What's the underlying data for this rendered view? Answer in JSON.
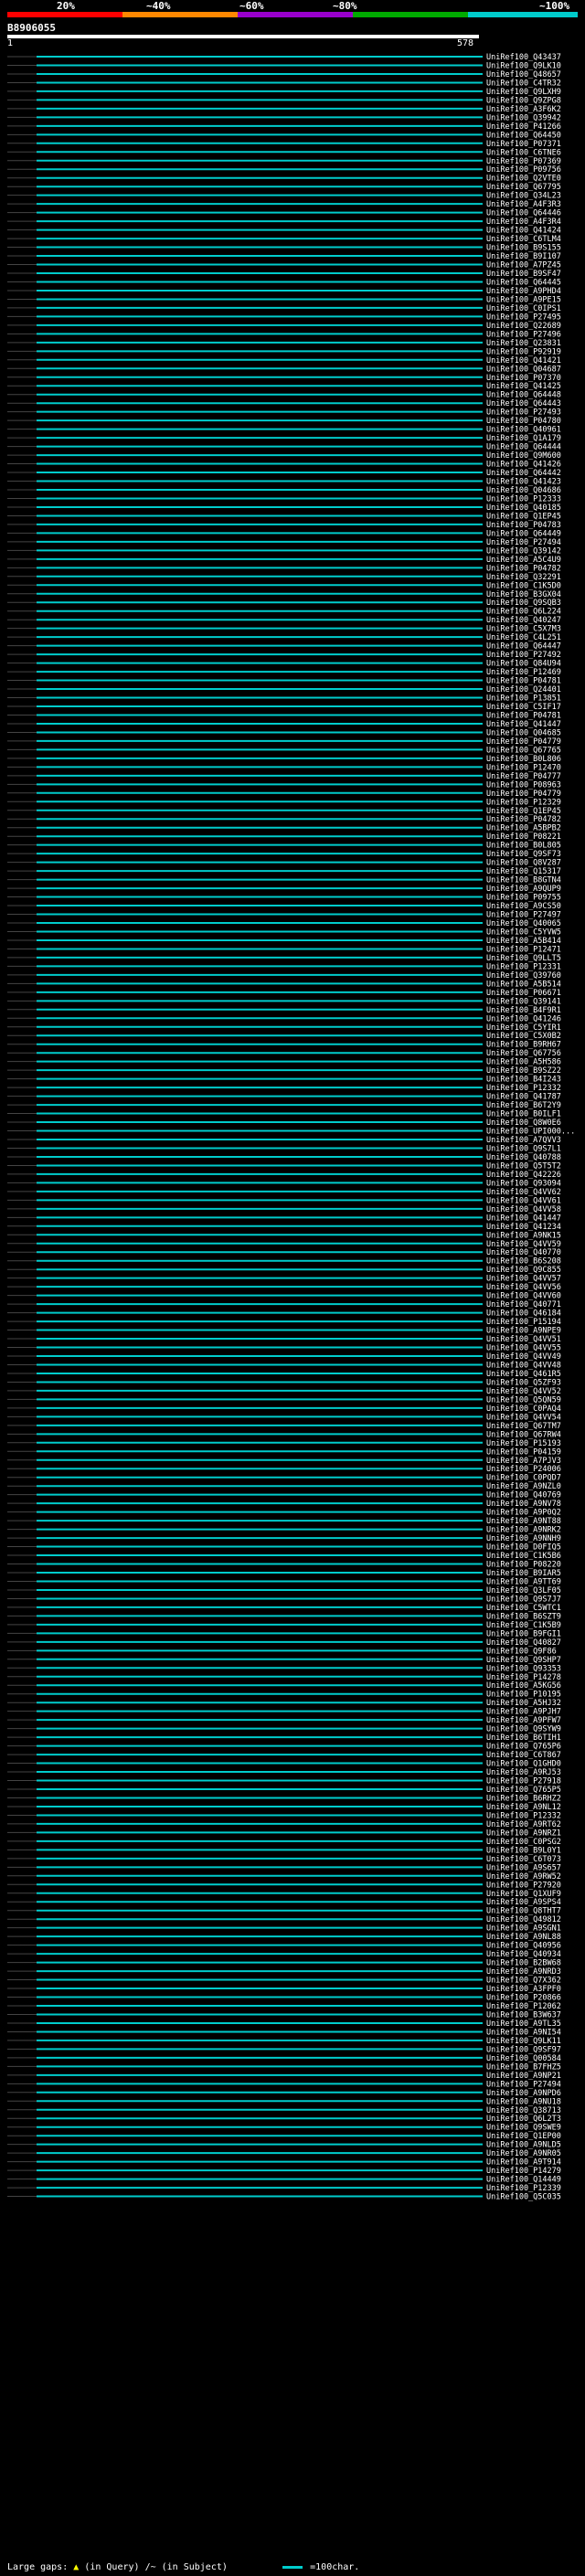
{
  "header": {
    "scale_labels": [
      "20%",
      "~40%",
      "~60%",
      "~80%",
      "~100%"
    ],
    "scale_colors": [
      "#ff0000",
      "#ff8800",
      "#9900cc",
      "#00aa00",
      "#00cccc"
    ],
    "query_id": "B8906055",
    "start_tick": "1",
    "end_tick": "578"
  },
  "footer": {
    "gap_label": "Large gaps:",
    "gap_query": "(in Query)",
    "gap_subject": "/~ (in Subject)",
    "scale_note": "=100char."
  },
  "chart_data": {
    "type": "alignment-overview",
    "query_length": 578,
    "subjects": [
      "UniRef100_Q43437",
      "UniRef100_Q9LK10",
      "UniRef100_Q48657",
      "UniRef100_C4TR32",
      "UniRef100_Q9LXH9",
      "UniRef100_Q9ZPG8",
      "UniRef100_A3F6K2",
      "UniRef100_Q39942",
      "UniRef100_P41266",
      "UniRef100_Q64450",
      "UniRef100_P07371",
      "UniRef100_C6TNE6",
      "UniRef100_P07369",
      "UniRef100_P09756",
      "UniRef100_Q2VTE0",
      "UniRef100_Q67795",
      "UniRef100_Q34L23",
      "UniRef100_A4F3R3",
      "UniRef100_Q64446",
      "UniRef100_A4F3R4",
      "UniRef100_Q41424",
      "UniRef100_C6TLM4",
      "UniRef100_B9S155",
      "UniRef100_B9I107",
      "UniRef100_A7PZ45",
      "UniRef100_B9SF47",
      "UniRef100_Q64445",
      "UniRef100_A9PHD4",
      "UniRef100_A9PE15",
      "UniRef100_C0IPS1",
      "UniRef100_P27495",
      "UniRef100_Q22689",
      "UniRef100_P27496",
      "UniRef100_Q23831",
      "UniRef100_P92919",
      "UniRef100_Q41421",
      "UniRef100_Q04687",
      "UniRef100_P07370",
      "UniRef100_Q41425",
      "UniRef100_Q64448",
      "UniRef100_Q64443",
      "UniRef100_P27493",
      "UniRef100_P04780",
      "UniRef100_Q40961",
      "UniRef100_Q1A179",
      "UniRef100_Q64444",
      "UniRef100_Q9M600",
      "UniRef100_Q41426",
      "UniRef100_Q64442",
      "UniRef100_Q41423",
      "UniRef100_Q04686",
      "UniRef100_P12333",
      "UniRef100_Q40185",
      "UniRef100_Q1EP45",
      "UniRef100_P04783",
      "UniRef100_Q64449",
      "UniRef100_P27494",
      "UniRef100_Q39142",
      "UniRef100_A5C4U9",
      "UniRef100_P04782",
      "UniRef100_Q32291",
      "UniRef100_C1K5D0",
      "UniRef100_B3GX04",
      "UniRef100_Q9SQB3",
      "UniRef100_Q6L224",
      "UniRef100_Q40247",
      "UniRef100_C5X7M3",
      "UniRef100_C4L251",
      "UniRef100_Q64447",
      "UniRef100_P27492",
      "UniRef100_Q84U94",
      "UniRef100_P12469",
      "UniRef100_P04781",
      "UniRef100_Q24401",
      "UniRef100_P13851",
      "UniRef100_C5IF17",
      "UniRef100_P04781",
      "UniRef100_Q41447",
      "UniRef100_Q04685",
      "UniRef100_P04779",
      "UniRef100_Q67765",
      "UniRef100_B0L806",
      "UniRef100_P12470",
      "UniRef100_P04777",
      "UniRef100_P08963",
      "UniRef100_P04779",
      "UniRef100_P12329",
      "UniRef100_Q1EP45",
      "UniRef100_P04782",
      "UniRef100_A5BPB2",
      "UniRef100_P08221",
      "UniRef100_B0L805",
      "UniRef100_Q9SF73",
      "UniRef100_Q8V287",
      "UniRef100_Q15317",
      "UniRef100_B8GTN4",
      "UniRef100_A9QUP9",
      "UniRef100_P09755",
      "UniRef100_A9CS50",
      "UniRef100_P27497",
      "UniRef100_Q40065",
      "UniRef100_C5YVW5",
      "UniRef100_A5B414",
      "UniRef100_P12471",
      "UniRef100_Q9LLT5",
      "UniRef100_P12331",
      "UniRef100_Q39760",
      "UniRef100_A5B514",
      "UniRef100_P06671",
      "UniRef100_Q39141",
      "UniRef100_B4F9R1",
      "UniRef100_Q41246",
      "UniRef100_C5YIR1",
      "UniRef100_C5X0B2",
      "UniRef100_B9RH67",
      "UniRef100_Q67756",
      "UniRef100_A5H586",
      "UniRef100_B9SZ22",
      "UniRef100_B4I243",
      "UniRef100_P12332",
      "UniRef100_Q41787",
      "UniRef100_B6T2Y9",
      "UniRef100_B0ILF1",
      "UniRef100_Q8W0E6",
      "UniRef100_UPI000...",
      "UniRef100_A7QVV3",
      "UniRef100_Q9S7L1",
      "UniRef100_Q40788",
      "UniRef100_Q5T5T2",
      "UniRef100_Q42226",
      "UniRef100_Q93094",
      "UniRef100_Q4VV62",
      "UniRef100_Q4VV61",
      "UniRef100_Q4VV58",
      "UniRef100_Q41447",
      "UniRef100_Q41234",
      "UniRef100_A9NK15",
      "UniRef100_Q4VV59",
      "UniRef100_Q40770",
      "UniRef100_B6S208",
      "UniRef100_Q9C855",
      "UniRef100_Q4VV57",
      "UniRef100_Q4VV56",
      "UniRef100_Q4VV60",
      "UniRef100_Q40771",
      "UniRef100_Q46184",
      "UniRef100_P15194",
      "UniRef100_A9NPE9",
      "UniRef100_Q4VV51",
      "UniRef100_Q4VV55",
      "UniRef100_Q4VV49",
      "UniRef100_Q4VV48",
      "UniRef100_Q461R5",
      "UniRef100_Q5ZF93",
      "UniRef100_Q4VV52",
      "UniRef100_Q5QN59",
      "UniRef100_C0PAQ4",
      "UniRef100_Q4VV54",
      "UniRef100_Q67TM7",
      "UniRef100_Q67RW4",
      "UniRef100_P15193",
      "UniRef100_P04159",
      "UniRef100_A7PJV3",
      "UniRef100_P24006",
      "UniRef100_C0PQD7",
      "UniRef100_A9NZL0",
      "UniRef100_Q40769",
      "UniRef100_A9NV78",
      "UniRef100_A9P0Q2",
      "UniRef100_A9NT88",
      "UniRef100_A9NRK2",
      "UniRef100_A9NNH9",
      "UniRef100_D0FIQ5",
      "UniRef100_C1K5B6",
      "UniRef100_P08220",
      "UniRef100_B9IAR5",
      "UniRef100_A9TT69",
      "UniRef100_Q3LF05",
      "UniRef100_Q9S7J7",
      "UniRef100_C5WTC1",
      "UniRef100_B6SZT9",
      "UniRef100_C1K5B9",
      "UniRef100_B9FGI1",
      "UniRef100_Q40827",
      "UniRef100_Q9F86",
      "UniRef100_Q9SHP7",
      "UniRef100_Q93353",
      "UniRef100_P14278",
      "UniRef100_A5KG56",
      "UniRef100_P10195",
      "UniRef100_A5HJ32",
      "UniRef100_A9PJH7",
      "UniRef100_A9PFW7",
      "UniRef100_Q9SYW9",
      "UniRef100_B6TIH1",
      "UniRef100_Q765P6",
      "UniRef100_C6T867",
      "UniRef100_Q1GHD0",
      "UniRef100_A9RJ53",
      "UniRef100_P27918",
      "UniRef100_Q765P5",
      "UniRef100_B6RHZ2",
      "UniRef100_A9NL12",
      "UniRef100_P12332",
      "UniRef100_A9RT62",
      "UniRef100_A9NRZ1",
      "UniRef100_C0PSG2",
      "UniRef100_B9L0Y1",
      "UniRef100_C6T073",
      "UniRef100_A9S657",
      "UniRef100_A9RW52",
      "UniRef100_P27920",
      "UniRef100_Q1XUF9",
      "UniRef100_A9SPS4",
      "UniRef100_Q8THT7",
      "UniRef100_Q49812",
      "UniRef100_A9SGN1",
      "UniRef100_A9NL88",
      "UniRef100_Q40956",
      "UniRef100_Q40934",
      "UniRef100_B2BW68",
      "UniRef100_A9NRD3",
      "UniRef100_Q7X362",
      "UniRef100_A3FPF0",
      "UniRef100_P20866",
      "UniRef100_P12062",
      "UniRef100_B3W637",
      "UniRef100_A9TL35",
      "UniRef100_A9NI54",
      "UniRef100_Q9LK11",
      "UniRef100_Q9SF97",
      "UniRef100_Q00584",
      "UniRef100_B7FHZ5",
      "UniRef100_A9NP21",
      "UniRef100_P27494",
      "UniRef100_A9NPD6",
      "UniRef100_A9NU18",
      "UniRef100_Q38713",
      "UniRef100_Q6L2T3",
      "UniRef100_Q9SWE9",
      "UniRef100_Q1EP00",
      "UniRef100_A9NLD5",
      "UniRef100_A9NR05",
      "UniRef100_A9T914",
      "UniRef100_P14279",
      "UniRef100_Q14449",
      "UniRef100_P12339",
      "UniRef100_Q5C035"
    ]
  }
}
